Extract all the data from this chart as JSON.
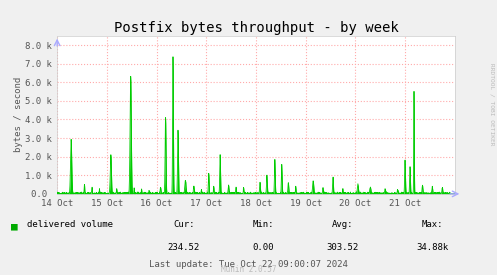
{
  "title": "Postfix bytes throughput - by week",
  "ylabel": "bytes / second",
  "background_color": "#f0f0f0",
  "plot_bg_color": "#ffffff",
  "grid_color": "#ffaaaa",
  "line_color": "#00cc00",
  "fill_color": "#00cc00",
  "ytick_labels": [
    "0.0 ",
    "1.0 k",
    "2.0 k",
    "3.0 k",
    "4.0 k",
    "5.0 k",
    "6.0 k",
    "7.0 k",
    "8.0 k"
  ],
  "ytick_vals": [
    0,
    1000,
    2000,
    3000,
    4000,
    5000,
    6000,
    7000,
    8000
  ],
  "xtick_labels": [
    "14 Oct",
    "15 Oct",
    "16 Oct",
    "17 Oct",
    "18 Oct",
    "19 Oct",
    "20 Oct",
    "21 Oct"
  ],
  "legend_label": "delivered volume",
  "legend_color": "#00aa00",
  "cur_label": "Cur:",
  "cur_val": "234.52",
  "min_label": "Min:",
  "min_val": "0.00",
  "avg_label": "Avg:",
  "avg_val": "303.52",
  "max_label": "Max:",
  "max_val": "34.88k",
  "last_update": "Last update: Tue Oct 22 09:00:07 2024",
  "munin_text": "Munin 2.0.57",
  "rrdtool_text": "RRDTOOL / TOBI OETIKER",
  "arrow_color": "#aaaaff",
  "spine_color": "#cccccc",
  "text_color": "#555555"
}
